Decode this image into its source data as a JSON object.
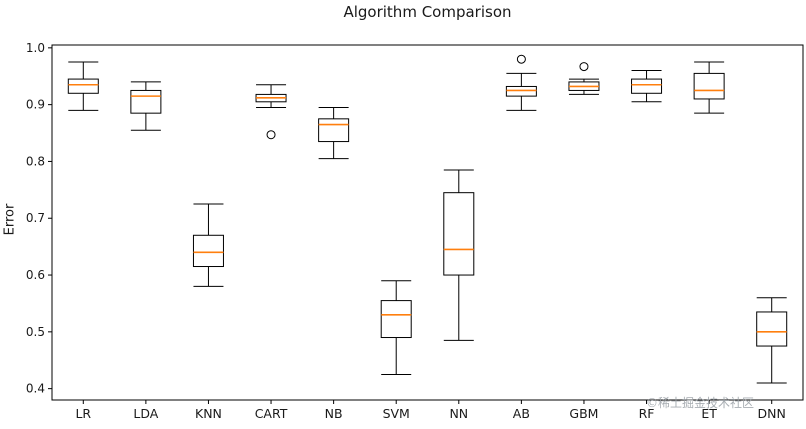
{
  "watermark": {
    "text": "©稀土掘金技术社区"
  },
  "chart_data": {
    "type": "boxplot",
    "title": "Algorithm Comparison",
    "xlabel": "",
    "ylabel": "Error",
    "ylim": [
      0.38,
      1.005
    ],
    "yticks": [
      0.4,
      0.5,
      0.6,
      0.7,
      0.8,
      0.9,
      1.0
    ],
    "grid": false,
    "legend": "none",
    "categories": [
      "LR",
      "LDA",
      "KNN",
      "CART",
      "NB",
      "SVM",
      "NN",
      "AB",
      "GBM",
      "RF",
      "ET",
      "DNN"
    ],
    "series": [
      {
        "name": "LR",
        "whislo": 0.89,
        "q1": 0.92,
        "med": 0.935,
        "q3": 0.945,
        "whishi": 0.975,
        "fliers": []
      },
      {
        "name": "LDA",
        "whislo": 0.855,
        "q1": 0.885,
        "med": 0.915,
        "q3": 0.925,
        "whishi": 0.94,
        "fliers": []
      },
      {
        "name": "KNN",
        "whislo": 0.58,
        "q1": 0.615,
        "med": 0.64,
        "q3": 0.67,
        "whishi": 0.725,
        "fliers": []
      },
      {
        "name": "CART",
        "whislo": 0.895,
        "q1": 0.905,
        "med": 0.912,
        "q3": 0.918,
        "whishi": 0.935,
        "fliers": [
          0.847
        ]
      },
      {
        "name": "NB",
        "whislo": 0.805,
        "q1": 0.835,
        "med": 0.865,
        "q3": 0.875,
        "whishi": 0.895,
        "fliers": []
      },
      {
        "name": "SVM",
        "whislo": 0.425,
        "q1": 0.49,
        "med": 0.53,
        "q3": 0.555,
        "whishi": 0.59,
        "fliers": []
      },
      {
        "name": "NN",
        "whislo": 0.485,
        "q1": 0.6,
        "med": 0.645,
        "q3": 0.745,
        "whishi": 0.785,
        "fliers": []
      },
      {
        "name": "AB",
        "whislo": 0.89,
        "q1": 0.915,
        "med": 0.925,
        "q3": 0.932,
        "whishi": 0.955,
        "fliers": [
          0.98
        ]
      },
      {
        "name": "GBM",
        "whislo": 0.918,
        "q1": 0.925,
        "med": 0.932,
        "q3": 0.94,
        "whishi": 0.945,
        "fliers": [
          0.967
        ]
      },
      {
        "name": "RF",
        "whislo": 0.905,
        "q1": 0.92,
        "med": 0.935,
        "q3": 0.945,
        "whishi": 0.96,
        "fliers": []
      },
      {
        "name": "ET",
        "whislo": 0.885,
        "q1": 0.91,
        "med": 0.925,
        "q3": 0.955,
        "whishi": 0.975,
        "fliers": []
      },
      {
        "name": "DNN",
        "whislo": 0.41,
        "q1": 0.475,
        "med": 0.5,
        "q3": 0.535,
        "whishi": 0.56,
        "fliers": []
      }
    ],
    "colors": {
      "frame": "#000000",
      "box": "#000000",
      "median": "#ff7f0e",
      "flier_edge": "#000000"
    }
  }
}
